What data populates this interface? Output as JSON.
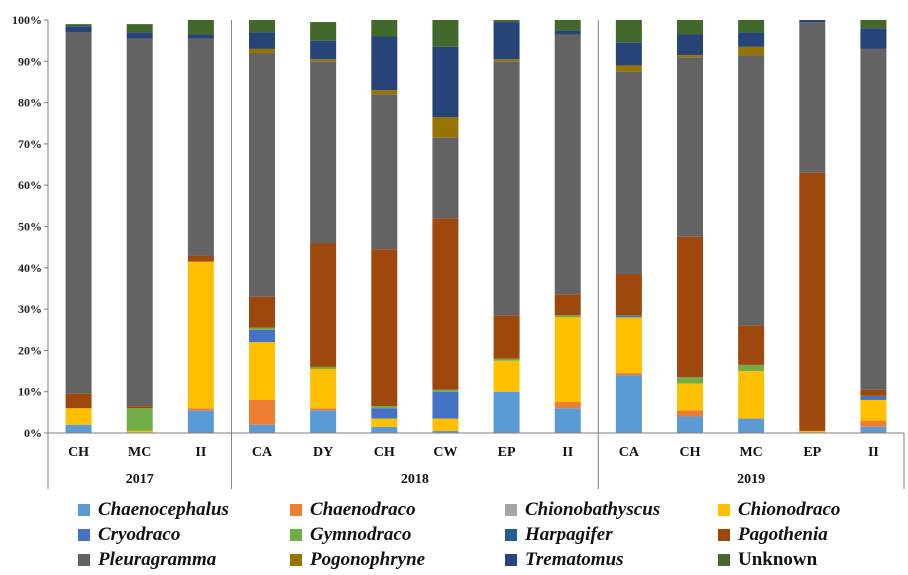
{
  "chart_data": {
    "type": "bar",
    "stacked": true,
    "percent": true,
    "ylim": [
      0,
      100
    ],
    "yticks": [
      0,
      10,
      20,
      30,
      40,
      50,
      60,
      70,
      80,
      90,
      100
    ],
    "ytick_format": "{v}%",
    "grid": false,
    "legend_position": "bottom",
    "groups": [
      {
        "label": "2017",
        "categories": [
          "CH",
          "MC",
          "II"
        ]
      },
      {
        "label": "2018",
        "categories": [
          "CA",
          "DY",
          "CH",
          "CW",
          "EP",
          "II"
        ]
      },
      {
        "label": "2019",
        "categories": [
          "CA",
          "CH",
          "MC",
          "EP",
          "II"
        ]
      }
    ],
    "categories": [
      "CH",
      "MC",
      "II",
      "CA",
      "DY",
      "CH",
      "CW",
      "EP",
      "II",
      "CA",
      "CH",
      "MC",
      "EP",
      "II"
    ],
    "series": [
      {
        "name": "Chaenocephalus",
        "italic": true,
        "color": "#5b9bd5",
        "values": [
          2,
          0,
          5.5,
          2,
          5.5,
          1.5,
          0.5,
          10,
          6,
          14,
          4,
          3.5,
          0,
          1.5
        ]
      },
      {
        "name": "Chaenodraco",
        "italic": true,
        "color": "#ed7d31",
        "values": [
          0,
          0,
          0.5,
          6,
          0.5,
          0,
          0,
          0,
          1.5,
          0.5,
          1.5,
          0,
          0,
          1.5
        ]
      },
      {
        "name": "Chionobathyscus",
        "italic": true,
        "color": "#a5a5a5",
        "values": [
          0,
          0,
          0,
          0,
          0,
          0,
          0,
          0,
          0,
          0,
          0,
          0,
          0,
          0
        ]
      },
      {
        "name": "Chionodraco",
        "italic": true,
        "color": "#ffc000",
        "values": [
          4,
          0.5,
          35.5,
          14,
          9.5,
          2,
          3,
          7.5,
          20.5,
          13.5,
          6.5,
          11.5,
          0.5,
          5
        ]
      },
      {
        "name": "Cryodraco",
        "italic": true,
        "color": "#4472c4",
        "values": [
          0,
          0,
          0,
          3,
          0,
          2.5,
          6.5,
          0,
          0,
          0.5,
          0,
          0,
          0,
          1
        ]
      },
      {
        "name": "Gymnodraco",
        "italic": true,
        "color": "#70ad47",
        "values": [
          0,
          5.5,
          0,
          0.5,
          0.5,
          0.5,
          0.5,
          0.5,
          0.5,
          0,
          1.5,
          1.5,
          0,
          0
        ]
      },
      {
        "name": "Harpagifer",
        "italic": true,
        "color": "#255e91",
        "values": [
          0,
          0,
          0,
          0,
          0,
          0,
          0,
          0,
          0,
          0,
          0,
          0,
          0,
          0
        ]
      },
      {
        "name": "Pagothenia",
        "italic": true,
        "color": "#9e480e",
        "values": [
          3.5,
          0.5,
          1.5,
          7.5,
          30,
          38,
          41.5,
          10.5,
          5,
          10,
          34,
          9.5,
          62.5,
          1.5
        ]
      },
      {
        "name": "Pleuragramma",
        "italic": true,
        "color": "#636363",
        "values": [
          87.5,
          89,
          52.5,
          59,
          44,
          37.5,
          19.5,
          61.5,
          63,
          49,
          43.5,
          65.5,
          36.5,
          82.5
        ]
      },
      {
        "name": "Pogonophryne",
        "italic": true,
        "color": "#997300",
        "values": [
          0,
          0,
          0,
          1,
          0.5,
          1,
          5,
          0.5,
          0,
          1.5,
          0.5,
          2,
          0,
          0
        ]
      },
      {
        "name": "Trematomus",
        "italic": true,
        "color": "#264478",
        "values": [
          1.5,
          1.5,
          1,
          4,
          4.5,
          13,
          17,
          9,
          1,
          5.5,
          5,
          3.5,
          0.5,
          5
        ]
      },
      {
        "name": "Unknown",
        "italic": false,
        "color": "#43682b",
        "values": [
          0.5,
          2,
          3.5,
          3,
          4.5,
          4,
          6.5,
          0.5,
          2.5,
          5.5,
          3.5,
          3,
          0,
          2
        ]
      }
    ]
  }
}
